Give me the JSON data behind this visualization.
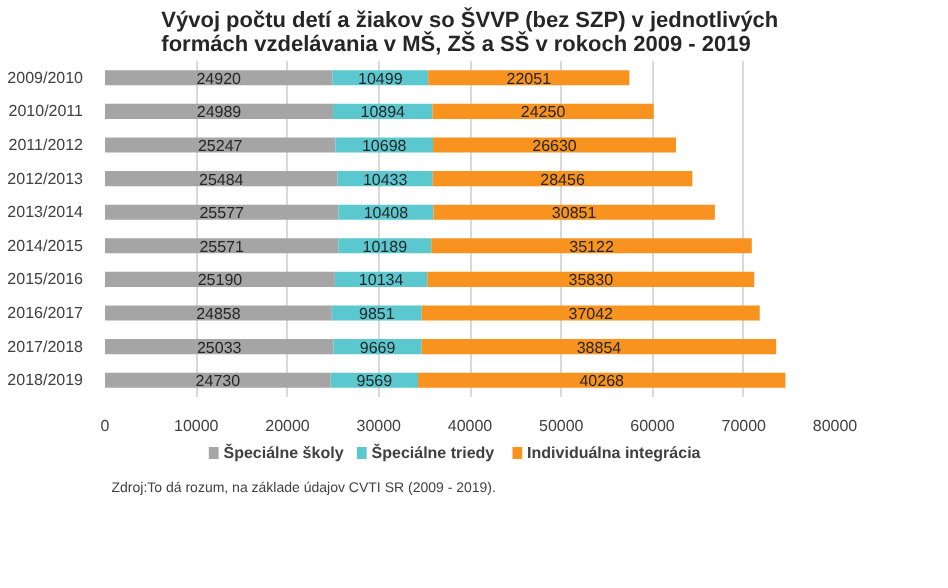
{
  "chart_data": {
    "type": "bar",
    "orientation": "horizontal",
    "stacked": true,
    "title": "Vývoj počtu detí a žiakov so ŠVVP (bez SZP) v jednotlivých formách vzdelávania v MŠ, ZŠ a SŠ v rokoch 2009 - 2019",
    "categories": [
      "2009/2010",
      "2010/2011",
      "2011/2012",
      "2012/2013",
      "2013/2014",
      "2014/2015",
      "2015/2016",
      "2016/2017",
      "2017/2018",
      "2018/2019"
    ],
    "series": [
      {
        "name": "Špeciálne školy",
        "color": "#a5a5a5",
        "values": [
          24920,
          24989,
          25247,
          25484,
          25577,
          25571,
          25190,
          24858,
          25033,
          24730
        ]
      },
      {
        "name": "Špeciálne triedy",
        "color": "#5bc8cf",
        "values": [
          10499,
          10894,
          10698,
          10433,
          10408,
          10189,
          10134,
          9851,
          9669,
          9569
        ]
      },
      {
        "name": "Individuálna integrácia",
        "color": "#f7931e",
        "values": [
          22051,
          24250,
          26630,
          28456,
          30851,
          35122,
          35830,
          37042,
          38854,
          40268
        ]
      }
    ],
    "xlim": [
      0,
      80000
    ],
    "xticks": [
      0,
      10000,
      20000,
      30000,
      40000,
      50000,
      60000,
      70000,
      80000
    ],
    "grid": "x",
    "legend": "bottom",
    "data_labels": true,
    "annotations": [
      "Zdroj:To dá rozum, na základe údajov CVTI SR (2009 - 2019)."
    ]
  }
}
